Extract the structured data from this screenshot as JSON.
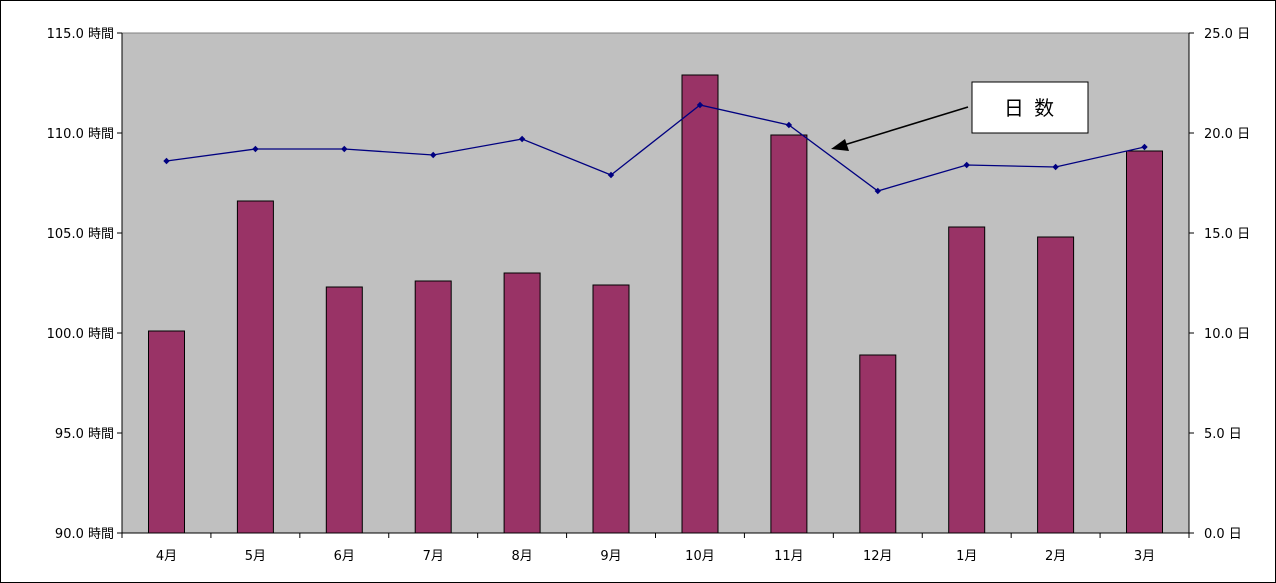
{
  "chart_data": {
    "type": "bar",
    "categories": [
      "4月",
      "5月",
      "6月",
      "7月",
      "8月",
      "9月",
      "10月",
      "11月",
      "12月",
      "1月",
      "2月",
      "3月"
    ],
    "series": [
      {
        "type": "bar",
        "axis": "left",
        "values": [
          100.1,
          106.6,
          102.3,
          102.6,
          103.0,
          102.4,
          112.9,
          109.9,
          98.9,
          105.3,
          104.8,
          109.1
        ],
        "color": "#993366"
      },
      {
        "type": "line",
        "axis": "right",
        "name": "日 数",
        "values": [
          18.6,
          19.2,
          19.2,
          18.9,
          19.7,
          17.9,
          21.4,
          20.4,
          17.1,
          18.4,
          18.3,
          19.3
        ],
        "color": "#000080"
      }
    ],
    "y_left": {
      "range": [
        90,
        115
      ],
      "ticks": [
        "90.0 時間",
        "95.0 時間",
        "100.0 時間",
        "105.0 時間",
        "110.0 時間",
        "115.0 時間"
      ]
    },
    "y_right": {
      "range": [
        0,
        25
      ],
      "ticks": [
        "0.0 日",
        "5.0 日",
        "10.0 日",
        "15.0 日",
        "20.0 日",
        "25.0 日"
      ]
    },
    "plot_background": "#c0c0c0",
    "grid": false,
    "legend": "callout pointing at line series"
  }
}
